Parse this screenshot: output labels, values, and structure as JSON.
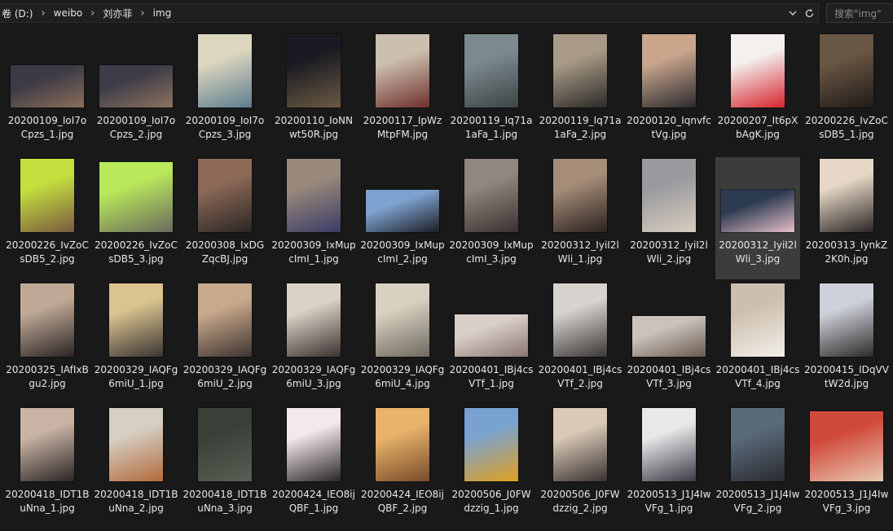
{
  "address": {
    "drive": "卷 (D:)",
    "crumbs": [
      "weibo",
      "刘亦菲",
      "img"
    ],
    "dropdown_icon": "chevron-down-icon",
    "refresh_icon": "refresh-icon"
  },
  "search": {
    "placeholder": "搜索\"img\""
  },
  "files": [
    {
      "name": "20200109_IoI7oCpzs_1.jpg",
      "shape": "land",
      "c1": "#3b3a45",
      "c2": "#8a6e5a"
    },
    {
      "name": "20200109_IoI7oCpzs_2.jpg",
      "shape": "land",
      "c1": "#3e3c48",
      "c2": "#8c725e"
    },
    {
      "name": "20200109_IoI7oCpzs_3.jpg",
      "shape": "port",
      "c1": "#ddd6bf",
      "c2": "#5d7e8e"
    },
    {
      "name": "20200110_IoNNwt50R.jpg",
      "shape": "port",
      "c1": "#1a1b22",
      "c2": "#6c5a44"
    },
    {
      "name": "20200117_IpWzMtpFM.jpg",
      "shape": "port",
      "c1": "#cbbfb0",
      "c2": "#6f2f2a"
    },
    {
      "name": "20200119_Iq71a1aFa_1.jpg",
      "shape": "port",
      "c1": "#7c8a8e",
      "c2": "#3c4446"
    },
    {
      "name": "20200119_Iq71a1aFa_2.jpg",
      "shape": "port",
      "c1": "#a89a86",
      "c2": "#2c2a28"
    },
    {
      "name": "20200120_IqnvfctVg.jpg",
      "shape": "port",
      "c1": "#c9a58c",
      "c2": "#2a2b2d"
    },
    {
      "name": "20200207_It6pXbAgK.jpg",
      "shape": "port",
      "c1": "#f3f0ee",
      "c2": "#d6242b"
    },
    {
      "name": "20200226_IvZoCsDB5_1.jpg",
      "shape": "port",
      "c1": "#6a5644",
      "c2": "#1f1b17"
    },
    {
      "name": "20200226_IvZoCsDB5_2.jpg",
      "shape": "port",
      "c1": "#c5e03e",
      "c2": "#7a5a40"
    },
    {
      "name": "20200226_IvZoCsDB5_3.jpg",
      "shape": "sq",
      "c1": "#b9e85a",
      "c2": "#6a6a5e"
    },
    {
      "name": "20200308_IxDGZqcBJ.jpg",
      "shape": "port",
      "c1": "#8d6a58",
      "c2": "#2c2624"
    },
    {
      "name": "20200309_IxMupcImI_1.jpg",
      "shape": "port",
      "c1": "#9a8a7c",
      "c2": "#3a3c66"
    },
    {
      "name": "20200309_IxMupcImI_2.jpg",
      "shape": "land",
      "c1": "#7ea2d0",
      "c2": "#1c1e24"
    },
    {
      "name": "20200309_IxMupcImI_3.jpg",
      "shape": "port",
      "c1": "#8f8780",
      "c2": "#3b3230"
    },
    {
      "name": "20200312_IyiI2lWli_1.jpg",
      "shape": "port",
      "c1": "#a58d78",
      "c2": "#2c2220"
    },
    {
      "name": "20200312_IyiI2lWli_2.jpg",
      "shape": "port",
      "c1": "#989a9e",
      "c2": "#d8cbbf"
    },
    {
      "name": "20200312_IyiI2lWli_3.jpg",
      "shape": "land",
      "c1": "#2b3a4f",
      "c2": "#e7bfc8",
      "selected": true
    },
    {
      "name": "20200313_IynkZ2K0h.jpg",
      "shape": "port",
      "c1": "#e6d7c6",
      "c2": "#2a2625"
    },
    {
      "name": "20200325_IAfIxBgu2.jpg",
      "shape": "port",
      "c1": "#bfa996",
      "c2": "#2a2424"
    },
    {
      "name": "20200329_IAQFg6miU_1.jpg",
      "shape": "port",
      "c1": "#d9c38f",
      "c2": "#3a3432"
    },
    {
      "name": "20200329_IAQFg6miU_2.jpg",
      "shape": "port",
      "c1": "#c9a98c",
      "c2": "#3e3431"
    },
    {
      "name": "20200329_IAQFg6miU_3.jpg",
      "shape": "port",
      "c1": "#dcd2c6",
      "c2": "#3a3230"
    },
    {
      "name": "20200329_IAQFg6miU_4.jpg",
      "shape": "port",
      "c1": "#d8d0c0",
      "c2": "#6f6a60"
    },
    {
      "name": "20200401_IBj4csVTf_1.jpg",
      "shape": "land",
      "c1": "#d9cfc8",
      "c2": "#8a7670"
    },
    {
      "name": "20200401_IBj4csVTf_2.jpg",
      "shape": "port",
      "c1": "#d7d3cf",
      "c2": "#3a3736"
    },
    {
      "name": "20200401_IBj4csVTf_3.jpg",
      "shape": "wide",
      "c1": "#cbc3bb",
      "c2": "#6a5a50"
    },
    {
      "name": "20200401_IBj4csVTf_4.jpg",
      "shape": "port",
      "c1": "#cdbfae",
      "c2": "#f2efe8"
    },
    {
      "name": "20200415_IDqVVtW2d.jpg",
      "shape": "port",
      "c1": "#cdd0d8",
      "c2": "#2d2a2a"
    },
    {
      "name": "20200418_IDT1BuNna_1.jpg",
      "shape": "port",
      "c1": "#c8b3a4",
      "c2": "#2a2524"
    },
    {
      "name": "20200418_IDT1BuNna_2.jpg",
      "shape": "port",
      "c1": "#d6cfc3",
      "c2": "#b26a3a"
    },
    {
      "name": "20200418_IDT1BuNna_3.jpg",
      "shape": "port",
      "c1": "#3a3f38",
      "c2": "#5a5f55"
    },
    {
      "name": "20200424_IEO8ijQBF_1.jpg",
      "shape": "port",
      "c1": "#f3e8ea",
      "c2": "#2a2626"
    },
    {
      "name": "20200424_IEO8ijQBF_2.jpg",
      "shape": "port",
      "c1": "#e8b46a",
      "c2": "#7a4a2a"
    },
    {
      "name": "20200506_J0FWdzzig_1.jpg",
      "shape": "port",
      "c1": "#7aa2d0",
      "c2": "#e0a020"
    },
    {
      "name": "20200506_J0FWdzzig_2.jpg",
      "shape": "port",
      "c1": "#d9c9b6",
      "c2": "#3a3230"
    },
    {
      "name": "20200513_J1J4IwVFg_1.jpg",
      "shape": "port",
      "c1": "#e8e8ea",
      "c2": "#3a3a44"
    },
    {
      "name": "20200513_J1J4IwVFg_2.jpg",
      "shape": "port",
      "c1": "#5a6a7a",
      "c2": "#2a2a30"
    },
    {
      "name": "20200513_J1J4IwVFg_3.jpg",
      "shape": "sq",
      "c1": "#d04a3a",
      "c2": "#e8c8b0"
    }
  ]
}
